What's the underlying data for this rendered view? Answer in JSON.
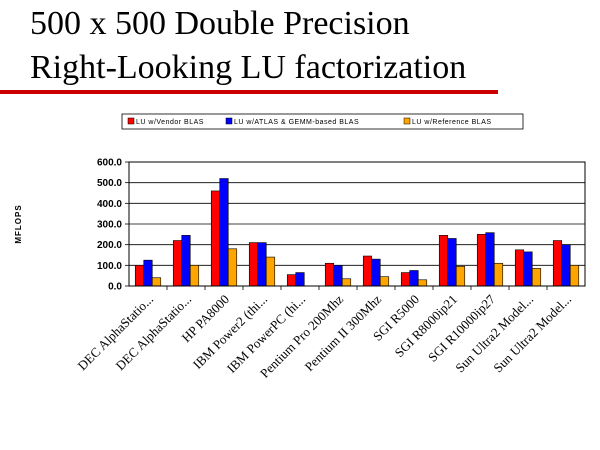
{
  "slide": {
    "title_line1": "500 x 500 Double Precision",
    "title_line2": "Right-Looking LU factorization"
  },
  "chart_data": {
    "type": "bar",
    "title": "",
    "xlabel": "",
    "ylabel": "MFLOPS",
    "ylim": [
      0,
      600
    ],
    "yticks": [
      "0.0",
      "100.0",
      "200.0",
      "300.0",
      "400.0",
      "500.0",
      "600.0"
    ],
    "grid": true,
    "legend_position": "top",
    "categories": [
      "DEC AlphaStatio...",
      "DEC AlphaStatio...",
      "HP PA8000",
      "IBM Power2 (thi...",
      "IBM PowerPC (hi...",
      "Pentium Pro 200Mhz",
      "Pentium II 300Mhz",
      "SGI R5000",
      "SGI R8000ip21",
      "SGI R10000ip27",
      "Sun Ultra2 Model...",
      "Sun Ultra2 Model..."
    ],
    "series": [
      {
        "name": "LU w/Vendor BLAS",
        "color": "#ff0000",
        "values": [
          100,
          220,
          460,
          210,
          55,
          110,
          145,
          65,
          245,
          250,
          175,
          220
        ]
      },
      {
        "name": "LU w/ATLAS & GEMM-based BLAS",
        "color": "#0000ff",
        "values": [
          125,
          245,
          520,
          210,
          65,
          100,
          130,
          75,
          230,
          258,
          165,
          200
        ]
      },
      {
        "name": "LU w/Reference BLAS",
        "color": "#ffa500",
        "values": [
          40,
          100,
          180,
          140,
          0,
          35,
          45,
          30,
          95,
          110,
          85,
          100
        ]
      }
    ]
  }
}
